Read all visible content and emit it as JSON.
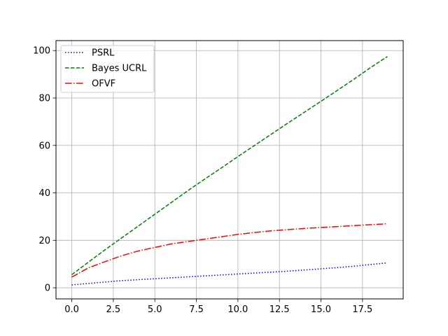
{
  "chart_data": {
    "type": "line",
    "title": "",
    "xlabel": "",
    "ylabel": "",
    "xlim": [
      -0.95,
      19.95
    ],
    "ylim": [
      -4.7,
      104.2
    ],
    "grid": true,
    "legend_position": "top-left",
    "x_ticks": [
      0.0,
      2.5,
      5.0,
      7.5,
      10.0,
      12.5,
      15.0,
      17.5
    ],
    "x_tick_labels": [
      "0.0",
      "2.5",
      "5.0",
      "7.5",
      "10.0",
      "12.5",
      "15.0",
      "17.5"
    ],
    "y_ticks": [
      0,
      20,
      40,
      60,
      80,
      100
    ],
    "y_tick_labels": [
      "0",
      "20",
      "40",
      "60",
      "80",
      "100"
    ],
    "x": [
      0,
      1,
      2,
      3,
      4,
      5,
      6,
      7,
      8,
      9,
      10,
      11,
      12,
      13,
      14,
      15,
      16,
      17,
      18,
      19
    ],
    "series": [
      {
        "name": "PSRL",
        "color": "#0000ff",
        "style": "dotted",
        "values": [
          1.2,
          1.8,
          2.4,
          3.0,
          3.4,
          3.8,
          4.2,
          4.6,
          5.0,
          5.4,
          5.8,
          6.2,
          6.6,
          7.0,
          7.5,
          8.0,
          8.5,
          9.1,
          9.8,
          10.5
        ]
      },
      {
        "name": "Bayes UCRL",
        "color": "#008000",
        "style": "dashed",
        "values": [
          5.5,
          10.8,
          16.0,
          21.0,
          26.0,
          31.0,
          36.0,
          41.0,
          45.8,
          50.5,
          55.3,
          60.0,
          64.7,
          69.4,
          74.0,
          78.6,
          83.3,
          88.0,
          92.9,
          97.5
        ]
      },
      {
        "name": "OFVF",
        "color": "#ff0000",
        "style": "dashdot",
        "values": [
          4.5,
          8.4,
          11.0,
          13.5,
          15.5,
          17.0,
          18.5,
          19.5,
          20.5,
          21.5,
          22.5,
          23.3,
          24.0,
          24.5,
          25.0,
          25.4,
          25.8,
          26.2,
          26.6,
          27.0
        ]
      }
    ]
  }
}
